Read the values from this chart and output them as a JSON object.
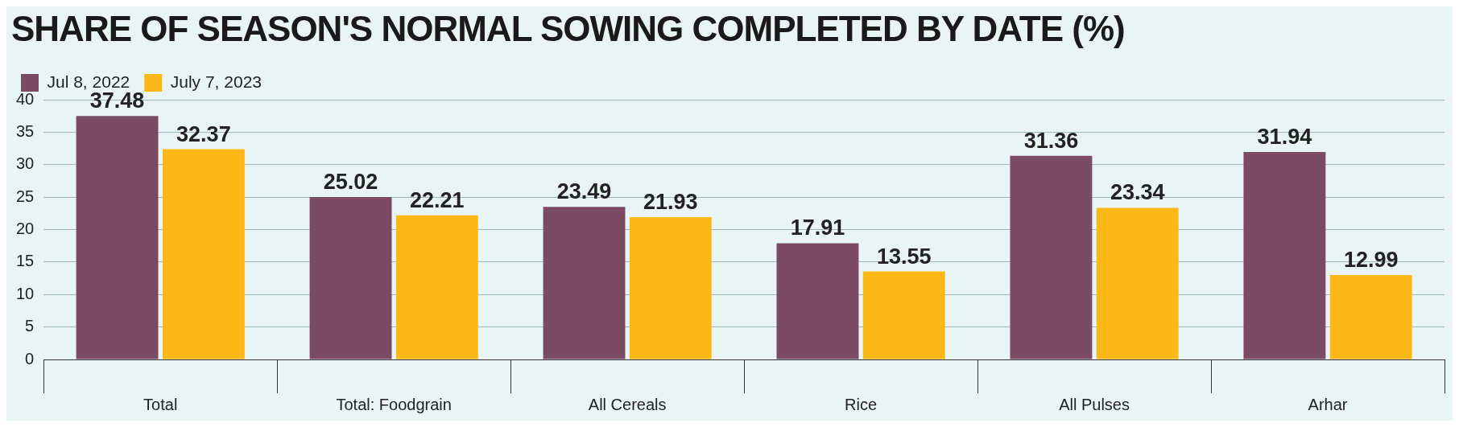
{
  "chart_data": {
    "type": "bar",
    "title": "SHARE OF SEASON'S NORMAL SOWING COMPLETED BY DATE (%)",
    "categories": [
      "Total",
      "Total: Foodgrain",
      "All Cereals",
      "Rice",
      "All Pulses",
      "Arhar"
    ],
    "series": [
      {
        "name": "Jul 8, 2022",
        "color": "#7b4b63",
        "values": [
          37.48,
          25.02,
          23.49,
          17.91,
          31.36,
          31.94
        ]
      },
      {
        "name": "July 7, 2023",
        "color": "#fbb817",
        "values": [
          32.37,
          22.21,
          21.93,
          13.55,
          23.34,
          12.99
        ]
      }
    ],
    "ylim": [
      0,
      40
    ],
    "yticks": [
      0,
      5,
      10,
      15,
      20,
      25,
      30,
      35,
      40
    ],
    "grid": "y",
    "legend": "top left",
    "data_labels": true
  }
}
